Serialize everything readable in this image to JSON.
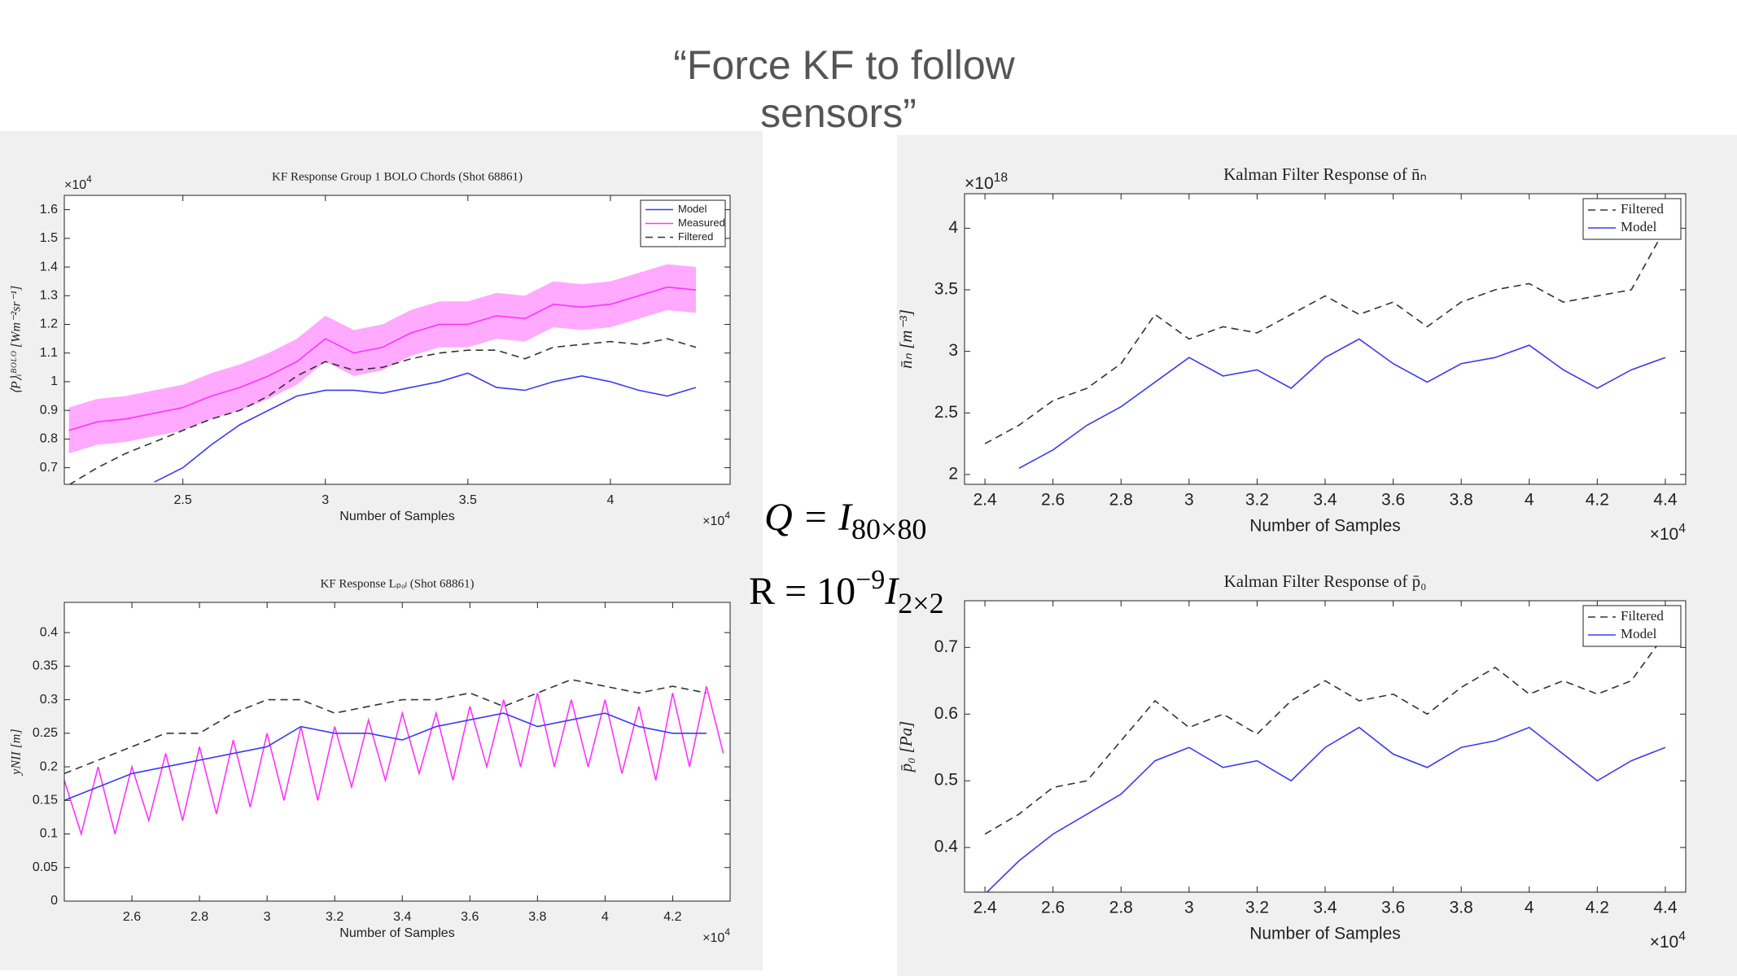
{
  "title": [
    "“Force KF to follow",
    "sensors”"
  ],
  "equations": [
    {
      "main": "Q = I",
      "sub": "80×80"
    },
    {
      "main": "R = 10",
      "sup": "−9",
      "main2": "I",
      "sub": "2×2"
    }
  ],
  "chart_data": [
    {
      "type": "line",
      "title": "KF Response Group 1 BOLO Chords (Shot 68861)",
      "x_label": "Number of Samples",
      "y_label": "⟨P⟩ᵢᴮᴼᴸᴼ [Wm⁻²sr⁻¹]",
      "x_multiplier": {
        "base": "×10",
        "exp": "4"
      },
      "y_multiplier": {
        "base": "×10",
        "exp": "4"
      },
      "xlim": [
        2.084,
        4.42
      ],
      "ylim": [
        0.642,
        1.65
      ],
      "xticks": [
        2.5,
        3,
        3.5,
        4
      ],
      "yticks": [
        0.7,
        0.8,
        0.9,
        1,
        1.1,
        1.2,
        1.3,
        1.4,
        1.5,
        1.6
      ],
      "x": [
        2.1,
        2.2,
        2.3,
        2.4,
        2.5,
        2.6,
        2.7,
        2.8,
        2.9,
        3.0,
        3.1,
        3.2,
        3.3,
        3.4,
        3.5,
        3.6,
        3.7,
        3.8,
        3.9,
        4.0,
        4.1,
        4.2,
        4.3
      ],
      "series": [
        {
          "name": "Model",
          "color": "#3b3bf0",
          "dash": false,
          "values": [
            null,
            null,
            null,
            0.65,
            0.7,
            0.78,
            0.85,
            0.9,
            0.95,
            0.97,
            0.97,
            0.96,
            0.98,
            1.0,
            1.03,
            0.98,
            0.97,
            1.0,
            1.02,
            1.0,
            0.97,
            0.95,
            0.98
          ]
        },
        {
          "name": "Measured",
          "color": "#ff33ff",
          "dash": false,
          "values": [
            0.83,
            0.86,
            0.87,
            0.89,
            0.91,
            0.95,
            0.98,
            1.02,
            1.07,
            1.15,
            1.1,
            1.12,
            1.17,
            1.2,
            1.2,
            1.23,
            1.22,
            1.27,
            1.26,
            1.27,
            1.3,
            1.33,
            1.32
          ],
          "band": {
            "color": "#ffaaff",
            "upper": [
              0.91,
              0.94,
              0.95,
              0.97,
              0.99,
              1.03,
              1.06,
              1.1,
              1.15,
              1.23,
              1.18,
              1.2,
              1.25,
              1.28,
              1.28,
              1.31,
              1.3,
              1.35,
              1.34,
              1.35,
              1.38,
              1.41,
              1.4
            ],
            "lower": [
              0.75,
              0.78,
              0.79,
              0.81,
              0.83,
              0.87,
              0.9,
              0.94,
              0.99,
              1.07,
              1.02,
              1.04,
              1.09,
              1.12,
              1.12,
              1.15,
              1.14,
              1.19,
              1.18,
              1.19,
              1.22,
              1.25,
              1.24
            ]
          }
        },
        {
          "name": "Filtered",
          "color": "#333333",
          "dash": true,
          "values": [
            0.64,
            0.7,
            0.75,
            0.79,
            0.83,
            0.87,
            0.9,
            0.95,
            1.02,
            1.07,
            1.04,
            1.05,
            1.08,
            1.1,
            1.11,
            1.11,
            1.08,
            1.12,
            1.13,
            1.14,
            1.13,
            1.15,
            1.12
          ]
        }
      ]
    },
    {
      "type": "line",
      "title": "KF Response Lₚₒₗ (Shot 68861)",
      "x_label": "Number of Samples",
      "y_label": "yNII [m]",
      "x_multiplier": {
        "base": "×10",
        "exp": "4"
      },
      "xlim": [
        2.4,
        4.37
      ],
      "ylim": [
        0,
        0.445
      ],
      "xticks": [
        2.6,
        2.8,
        3,
        3.2,
        3.4,
        3.6,
        3.8,
        4,
        4.2
      ],
      "yticks": [
        0,
        0.05,
        0.1,
        0.15,
        0.2,
        0.25,
        0.3,
        0.35,
        0.4
      ],
      "series": [
        {
          "color": "#ff33ff",
          "dash": false,
          "x": [
            2.4,
            2.45,
            2.5,
            2.55,
            2.6,
            2.65,
            2.7,
            2.75,
            2.8,
            2.85,
            2.9,
            2.95,
            3.0,
            3.05,
            3.1,
            3.15,
            3.2,
            3.25,
            3.3,
            3.35,
            3.4,
            3.45,
            3.5,
            3.55,
            3.6,
            3.65,
            3.7,
            3.75,
            3.8,
            3.85,
            3.9,
            3.95,
            4.0,
            4.05,
            4.1,
            4.15,
            4.2,
            4.25,
            4.3,
            4.35
          ],
          "values": [
            0.18,
            0.1,
            0.2,
            0.1,
            0.2,
            0.12,
            0.22,
            0.12,
            0.23,
            0.13,
            0.24,
            0.14,
            0.25,
            0.15,
            0.26,
            0.15,
            0.26,
            0.17,
            0.27,
            0.18,
            0.28,
            0.19,
            0.28,
            0.18,
            0.29,
            0.2,
            0.3,
            0.2,
            0.31,
            0.2,
            0.3,
            0.2,
            0.3,
            0.19,
            0.29,
            0.18,
            0.31,
            0.2,
            0.32,
            0.22
          ]
        },
        {
          "color": "#3b3bf0",
          "dash": false,
          "x": [
            2.4,
            2.5,
            2.6,
            2.7,
            2.8,
            2.9,
            3.0,
            3.1,
            3.2,
            3.3,
            3.4,
            3.5,
            3.6,
            3.7,
            3.8,
            3.9,
            4.0,
            4.1,
            4.2,
            4.3
          ],
          "values": [
            0.15,
            0.17,
            0.19,
            0.2,
            0.21,
            0.22,
            0.23,
            0.26,
            0.25,
            0.25,
            0.24,
            0.26,
            0.27,
            0.28,
            0.26,
            0.27,
            0.28,
            0.26,
            0.25,
            0.25
          ]
        },
        {
          "color": "#333333",
          "dash": true,
          "x": [
            2.4,
            2.5,
            2.6,
            2.7,
            2.8,
            2.9,
            3.0,
            3.1,
            3.2,
            3.3,
            3.4,
            3.5,
            3.6,
            3.7,
            3.8,
            3.9,
            4.0,
            4.1,
            4.2,
            4.3
          ],
          "values": [
            0.19,
            0.21,
            0.23,
            0.25,
            0.25,
            0.28,
            0.3,
            0.3,
            0.28,
            0.29,
            0.3,
            0.3,
            0.31,
            0.29,
            0.31,
            0.33,
            0.32,
            0.31,
            0.32,
            0.31
          ]
        }
      ]
    },
    {
      "type": "line",
      "title": "Kalman Filter Response of n̄ₙ",
      "x_label": "Number of Samples",
      "y_label": "n̄ₙ [m⁻³]",
      "x_multiplier": {
        "base": "×10",
        "exp": "4"
      },
      "y_multiplier": {
        "base": "×10",
        "exp": "18"
      },
      "xlim": [
        2.34,
        4.46
      ],
      "ylim": [
        1.92,
        4.28
      ],
      "xticks": [
        2.4,
        2.6,
        2.8,
        3,
        3.2,
        3.4,
        3.6,
        3.8,
        4,
        4.2,
        4.4
      ],
      "yticks": [
        2,
        2.5,
        3,
        3.5,
        4
      ],
      "x": [
        2.4,
        2.5,
        2.6,
        2.7,
        2.8,
        2.9,
        3.0,
        3.1,
        3.2,
        3.3,
        3.4,
        3.5,
        3.6,
        3.7,
        3.8,
        3.9,
        4.0,
        4.1,
        4.2,
        4.3,
        4.4
      ],
      "series": [
        {
          "name": "Filtered",
          "color": "#333333",
          "dash": true,
          "values": [
            2.25,
            2.4,
            2.6,
            2.7,
            2.9,
            3.3,
            3.1,
            3.2,
            3.15,
            3.3,
            3.45,
            3.3,
            3.4,
            3.2,
            3.4,
            3.5,
            3.55,
            3.4,
            3.45,
            3.5,
            4.0
          ]
        },
        {
          "name": "Model",
          "color": "#3b3bf0",
          "dash": false,
          "values": [
            null,
            2.05,
            2.2,
            2.4,
            2.55,
            2.75,
            2.95,
            2.8,
            2.85,
            2.7,
            2.95,
            3.1,
            2.9,
            2.75,
            2.9,
            2.95,
            3.05,
            2.85,
            2.7,
            2.85,
            2.95
          ]
        }
      ]
    },
    {
      "type": "line",
      "title": "Kalman Filter Response of p̄₀",
      "x_label": "Number of Samples",
      "y_label": "p̄₀ [Pa]",
      "x_multiplier": {
        "base": "×10",
        "exp": "4"
      },
      "xlim": [
        2.34,
        4.46
      ],
      "ylim": [
        0.333,
        0.77
      ],
      "xticks": [
        2.4,
        2.6,
        2.8,
        3,
        3.2,
        3.4,
        3.6,
        3.8,
        4,
        4.2,
        4.4
      ],
      "yticks": [
        0.4,
        0.5,
        0.6,
        0.7
      ],
      "x": [
        2.4,
        2.5,
        2.6,
        2.7,
        2.8,
        2.9,
        3.0,
        3.1,
        3.2,
        3.3,
        3.4,
        3.5,
        3.6,
        3.7,
        3.8,
        3.9,
        4.0,
        4.1,
        4.2,
        4.3,
        4.4
      ],
      "series": [
        {
          "name": "Filtered",
          "color": "#333333",
          "dash": true,
          "values": [
            0.42,
            0.45,
            0.49,
            0.5,
            0.56,
            0.62,
            0.58,
            0.6,
            0.57,
            0.62,
            0.65,
            0.62,
            0.63,
            0.6,
            0.64,
            0.67,
            0.63,
            0.65,
            0.63,
            0.65,
            0.72
          ]
        },
        {
          "name": "Model",
          "color": "#3b3bf0",
          "dash": false,
          "values": [
            0.33,
            0.38,
            0.42,
            0.45,
            0.48,
            0.53,
            0.55,
            0.52,
            0.53,
            0.5,
            0.55,
            0.58,
            0.54,
            0.52,
            0.55,
            0.56,
            0.58,
            0.54,
            0.5,
            0.53,
            0.55
          ]
        }
      ]
    }
  ]
}
